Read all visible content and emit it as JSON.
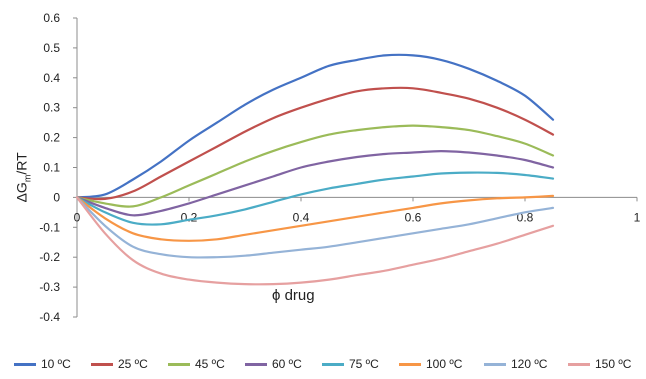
{
  "chart_data": {
    "type": "line",
    "title": "",
    "xlabel": "ϕ drug",
    "ylabel_main": "ΔG",
    "ylabel_sub": "m",
    "ylabel_suffix": "/RT",
    "xlim": [
      0,
      1
    ],
    "ylim": [
      -0.4,
      0.6
    ],
    "x_ticks": [
      "0",
      "0.2",
      "0.4",
      "0.6",
      "0.8",
      "1"
    ],
    "y_ticks": [
      "0.6",
      "0.5",
      "0.4",
      "0.3",
      "0.2",
      "0.1",
      "0",
      "-0.1",
      "-0.2",
      "-0.3",
      "-0.4"
    ],
    "grid": false,
    "legend_position": "bottom",
    "x": [
      0,
      0.05,
      0.1,
      0.15,
      0.2,
      0.25,
      0.3,
      0.35,
      0.4,
      0.45,
      0.5,
      0.55,
      0.6,
      0.65,
      0.7,
      0.75,
      0.8,
      0.85
    ],
    "series": [
      {
        "name": "10 ºC",
        "color": "#4472C4",
        "values": [
          0,
          0.01,
          0.06,
          0.12,
          0.19,
          0.25,
          0.31,
          0.36,
          0.4,
          0.44,
          0.46,
          0.475,
          0.475,
          0.46,
          0.43,
          0.39,
          0.34,
          0.26
        ]
      },
      {
        "name": "25 ºC",
        "color": "#C0504D",
        "values": [
          0,
          -0.005,
          0.02,
          0.07,
          0.12,
          0.17,
          0.22,
          0.265,
          0.3,
          0.33,
          0.355,
          0.365,
          0.365,
          0.35,
          0.33,
          0.3,
          0.26,
          0.21
        ]
      },
      {
        "name": "45 ºC",
        "color": "#9BBB59",
        "values": [
          0,
          -0.02,
          -0.03,
          0.0,
          0.04,
          0.08,
          0.12,
          0.155,
          0.185,
          0.21,
          0.225,
          0.235,
          0.24,
          0.235,
          0.225,
          0.205,
          0.18,
          0.14
        ]
      },
      {
        "name": "60 ºC",
        "color": "#8064A2",
        "values": [
          0,
          -0.035,
          -0.06,
          -0.045,
          -0.02,
          0.01,
          0.04,
          0.07,
          0.1,
          0.12,
          0.135,
          0.145,
          0.15,
          0.155,
          0.15,
          0.14,
          0.125,
          0.1
        ]
      },
      {
        "name": "75 ºC",
        "color": "#4BACC6",
        "values": [
          0,
          -0.05,
          -0.085,
          -0.09,
          -0.075,
          -0.06,
          -0.04,
          -0.015,
          0.01,
          0.03,
          0.045,
          0.06,
          0.07,
          0.08,
          0.083,
          0.082,
          0.075,
          0.063
        ]
      },
      {
        "name": "100 ºC",
        "color": "#F79646",
        "values": [
          0,
          -0.07,
          -0.12,
          -0.14,
          -0.145,
          -0.14,
          -0.125,
          -0.11,
          -0.095,
          -0.08,
          -0.065,
          -0.05,
          -0.035,
          -0.02,
          -0.01,
          -0.003,
          0.0,
          0.005
        ]
      },
      {
        "name": "120 ºC",
        "color": "#95B3D7",
        "values": [
          0,
          -0.095,
          -0.165,
          -0.19,
          -0.2,
          -0.2,
          -0.195,
          -0.185,
          -0.175,
          -0.165,
          -0.15,
          -0.135,
          -0.12,
          -0.105,
          -0.09,
          -0.07,
          -0.05,
          -0.035
        ]
      },
      {
        "name": "150 ºC",
        "color": "#E6A0A0",
        "values": [
          0,
          -0.12,
          -0.21,
          -0.255,
          -0.275,
          -0.285,
          -0.29,
          -0.29,
          -0.285,
          -0.275,
          -0.26,
          -0.245,
          -0.225,
          -0.205,
          -0.18,
          -0.155,
          -0.125,
          -0.095
        ]
      }
    ]
  }
}
